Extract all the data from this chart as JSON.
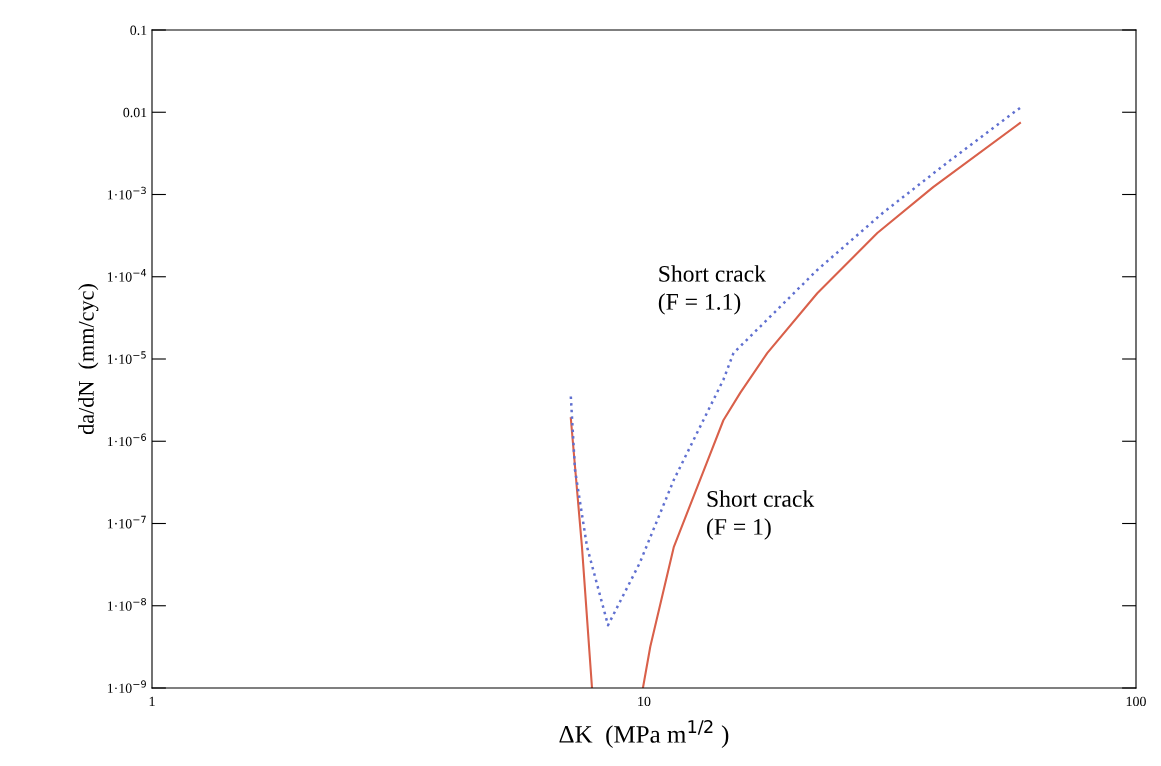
{
  "chart_data": {
    "type": "line",
    "xlabel": "ΔK  (MPa m$^{1/2}$ )",
    "ylabel": "da/dN  (mm/cyc)",
    "log": "xy",
    "grid": false,
    "legend": false,
    "xlim": [
      1,
      100
    ],
    "xticks": [
      1,
      10,
      100
    ],
    "ylim": [
      1e-09,
      0.1
    ],
    "yticks": [
      {
        "value": 1e-09,
        "label": "1·10$^{−9}$"
      },
      {
        "value": 1e-08,
        "label": "1·10$^{−8}$"
      },
      {
        "value": 1e-07,
        "label": "1·10$^{−7}$"
      },
      {
        "value": 1e-06,
        "label": "1·10$^{−6}$"
      },
      {
        "value": 1e-05,
        "label": "1·10$^{−5}$"
      },
      {
        "value": 0.0001,
        "label": "1·10$^{−4}$"
      },
      {
        "value": 0.001,
        "label": "1·10$^{−3}$"
      },
      0.01,
      0.1
    ],
    "series": [
      {
        "color": "#d9604a",
        "line_style": "solid",
        "x": [
          7.1,
          7.48,
          7.84
        ],
        "values": [
          1.9e-06,
          5.2e-08,
          1e-09
        ]
      },
      {
        "color": "#d9604a",
        "line_style": "solid",
        "x": [
          9.95,
          10.3,
          11.5,
          13.4,
          14.5,
          15.7,
          17.8,
          22.5,
          29.8,
          38.7,
          58.1
        ],
        "values": [
          1e-09,
          3.2e-09,
          5.2e-08,
          5.4e-07,
          1.8e-06,
          3.9e-06,
          1.18e-05,
          6.3e-05,
          0.00034,
          0.00123,
          0.0074
        ]
      },
      {
        "color": "#6070d0",
        "line_style": "dotted",
        "x": [
          7.1,
          7.24,
          7.66,
          8.45,
          9.8,
          11.5,
          14.5,
          15.2,
          22.5,
          30.6,
          41.9,
          58.1
        ],
        "values": [
          3.5e-06,
          4.5e-07,
          5.2e-08,
          5.8e-09,
          3.3e-08,
          3.4e-07,
          5.6e-06,
          1.18e-05,
          0.000121,
          0.0006,
          0.0026,
          0.0113
        ]
      }
    ],
    "annotations": [
      "Short crack\n(F = 1.1)",
      "Short crack\n(F = 1)"
    ]
  }
}
